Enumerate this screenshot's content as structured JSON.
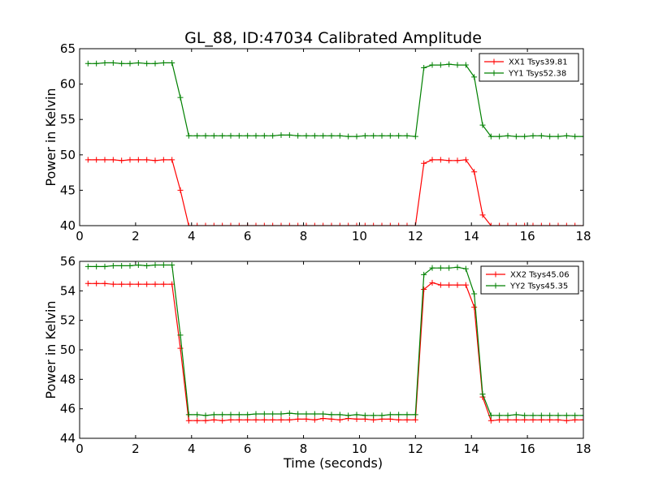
{
  "chart_data": [
    {
      "type": "line",
      "title": "GL_88, ID:47034 Calibrated Amplitude",
      "xlabel": "",
      "ylabel": "Power in Kelvin",
      "xlim": [
        0,
        18
      ],
      "ylim": [
        40,
        65
      ],
      "xticks": [
        "0",
        "2",
        "4",
        "6",
        "8",
        "10",
        "12",
        "14",
        "16",
        "18"
      ],
      "yticks": [
        "40",
        "45",
        "50",
        "55",
        "60",
        "65"
      ],
      "legend_position": "top-right",
      "grid": false,
      "x": [
        0.3,
        0.6,
        0.9,
        1.2,
        1.5,
        1.8,
        2.1,
        2.4,
        2.7,
        3.0,
        3.3,
        3.6,
        3.9,
        4.2,
        4.5,
        4.8,
        5.1,
        5.4,
        5.7,
        6.0,
        6.3,
        6.6,
        6.9,
        7.2,
        7.5,
        7.8,
        8.1,
        8.4,
        8.7,
        9.0,
        9.3,
        9.6,
        9.9,
        10.2,
        10.5,
        10.8,
        11.1,
        11.4,
        11.7,
        12.0,
        12.3,
        12.6,
        12.9,
        13.2,
        13.5,
        13.8,
        14.1,
        14.4,
        14.7,
        15.0,
        15.3,
        15.6,
        15.9,
        16.2,
        16.5,
        16.8,
        17.1,
        17.4,
        17.7,
        18.0
      ],
      "series": [
        {
          "name": "XX1 Tsys39.81",
          "color": "#ff0000",
          "values": [
            49.3,
            49.3,
            49.3,
            49.3,
            49.2,
            49.3,
            49.3,
            49.3,
            49.2,
            49.3,
            49.3,
            45.0,
            40.0,
            40.0,
            40.0,
            40.0,
            40.0,
            40.0,
            40.0,
            40.0,
            40.0,
            40.0,
            40.0,
            40.0,
            40.0,
            40.0,
            40.0,
            40.0,
            40.0,
            40.0,
            40.0,
            40.0,
            40.0,
            40.0,
            40.0,
            40.0,
            40.0,
            40.0,
            40.0,
            40.0,
            48.8,
            49.3,
            49.3,
            49.2,
            49.2,
            49.3,
            47.6,
            41.5,
            40.0,
            40.0,
            40.0,
            40.0,
            40.0,
            40.0,
            40.0,
            40.0,
            40.0,
            40.0,
            40.0,
            40.0
          ]
        },
        {
          "name": "YY1 Tsys52.38",
          "color": "#008000",
          "values": [
            62.9,
            62.9,
            63.0,
            63.0,
            62.9,
            62.9,
            63.0,
            62.9,
            62.9,
            63.0,
            63.0,
            58.1,
            52.7,
            52.7,
            52.7,
            52.7,
            52.7,
            52.7,
            52.7,
            52.7,
            52.7,
            52.7,
            52.7,
            52.8,
            52.8,
            52.7,
            52.7,
            52.7,
            52.7,
            52.7,
            52.7,
            52.6,
            52.6,
            52.7,
            52.7,
            52.7,
            52.7,
            52.7,
            52.7,
            52.6,
            62.3,
            62.7,
            62.7,
            62.8,
            62.7,
            62.7,
            61.0,
            54.2,
            52.6,
            52.6,
            52.7,
            52.6,
            52.6,
            52.7,
            52.7,
            52.6,
            52.6,
            52.7,
            52.6,
            52.6
          ]
        }
      ]
    },
    {
      "type": "line",
      "title": "",
      "xlabel": "Time (seconds)",
      "ylabel": "Power in Kelvin",
      "xlim": [
        0,
        18
      ],
      "ylim": [
        44,
        56
      ],
      "xticks": [
        "0",
        "2",
        "4",
        "6",
        "8",
        "10",
        "12",
        "14",
        "16",
        "18"
      ],
      "yticks": [
        "44",
        "46",
        "48",
        "50",
        "52",
        "54",
        "56"
      ],
      "legend_position": "top-right",
      "grid": false,
      "x": [
        0.3,
        0.6,
        0.9,
        1.2,
        1.5,
        1.8,
        2.1,
        2.4,
        2.7,
        3.0,
        3.3,
        3.6,
        3.9,
        4.2,
        4.5,
        4.8,
        5.1,
        5.4,
        5.7,
        6.0,
        6.3,
        6.6,
        6.9,
        7.2,
        7.5,
        7.8,
        8.1,
        8.4,
        8.7,
        9.0,
        9.3,
        9.6,
        9.9,
        10.2,
        10.5,
        10.8,
        11.1,
        11.4,
        11.7,
        12.0,
        12.3,
        12.6,
        12.9,
        13.2,
        13.5,
        13.8,
        14.1,
        14.4,
        14.7,
        15.0,
        15.3,
        15.6,
        15.9,
        16.2,
        16.5,
        16.8,
        17.1,
        17.4,
        17.7,
        18.0
      ],
      "series": [
        {
          "name": "XX2 Tsys45.06",
          "color": "#ff0000",
          "values": [
            54.5,
            54.5,
            54.5,
            54.45,
            54.45,
            54.45,
            54.45,
            54.45,
            54.45,
            54.45,
            54.45,
            50.1,
            45.2,
            45.2,
            45.2,
            45.25,
            45.2,
            45.25,
            45.25,
            45.25,
            45.25,
            45.25,
            45.25,
            45.25,
            45.25,
            45.3,
            45.3,
            45.25,
            45.35,
            45.3,
            45.25,
            45.35,
            45.3,
            45.3,
            45.25,
            45.3,
            45.3,
            45.25,
            45.25,
            45.25,
            54.1,
            54.55,
            54.4,
            54.4,
            54.4,
            54.4,
            52.9,
            46.8,
            45.2,
            45.25,
            45.25,
            45.25,
            45.25,
            45.25,
            45.25,
            45.25,
            45.25,
            45.2,
            45.25,
            45.25
          ]
        },
        {
          "name": "YY2 Tsys45.35",
          "color": "#008000",
          "values": [
            55.65,
            55.65,
            55.65,
            55.7,
            55.7,
            55.7,
            55.75,
            55.7,
            55.75,
            55.75,
            55.75,
            51.0,
            45.6,
            45.6,
            45.55,
            45.6,
            45.6,
            45.6,
            45.6,
            45.6,
            45.65,
            45.65,
            45.65,
            45.65,
            45.7,
            45.65,
            45.65,
            45.65,
            45.65,
            45.6,
            45.6,
            45.55,
            45.6,
            45.55,
            45.55,
            45.55,
            45.6,
            45.6,
            45.6,
            45.6,
            55.1,
            55.55,
            55.55,
            55.55,
            55.6,
            55.5,
            53.8,
            47.0,
            45.55,
            45.55,
            45.55,
            45.6,
            45.55,
            45.55,
            45.55,
            45.55,
            45.55,
            45.55,
            45.55,
            45.55
          ]
        }
      ]
    }
  ]
}
